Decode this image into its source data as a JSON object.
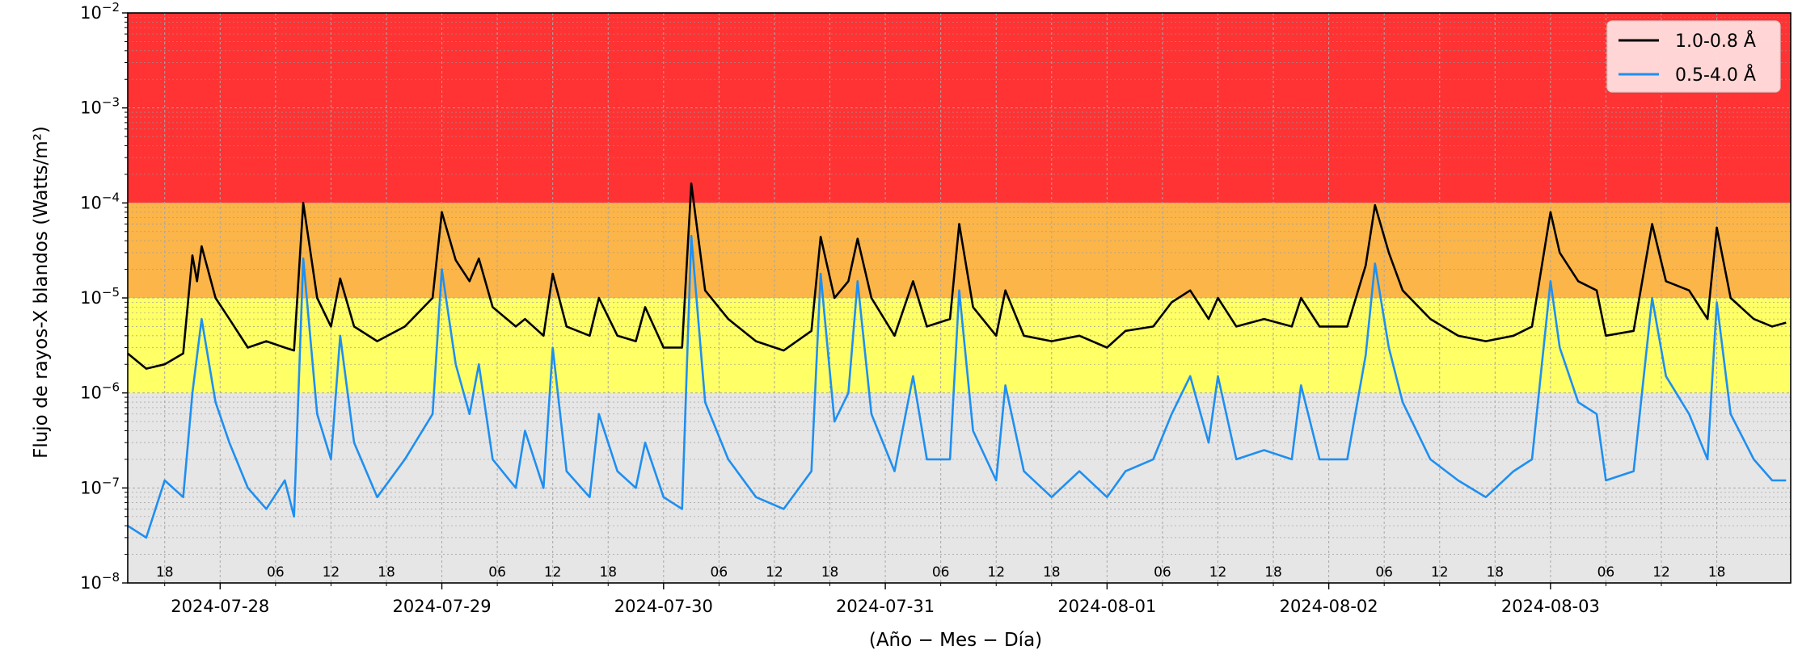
{
  "chart_data": {
    "type": "line",
    "xlabel": "(Año − Mes − Día)",
    "ylabel": "Flujo de rayos-X blandos (Watts/m²)",
    "yscale": "log",
    "ylim": [
      1e-08,
      0.01
    ],
    "y_ticks": [
      {
        "value": 1e-08,
        "base": "10",
        "exp": "−8"
      },
      {
        "value": 1e-07,
        "base": "10",
        "exp": "−7"
      },
      {
        "value": 1e-06,
        "base": "10",
        "exp": "−6"
      },
      {
        "value": 1e-05,
        "base": "10",
        "exp": "−5"
      },
      {
        "value": 0.0001,
        "base": "10",
        "exp": "−4"
      },
      {
        "value": 0.001,
        "base": "10",
        "exp": "−3"
      },
      {
        "value": 0.01,
        "base": "10",
        "exp": "−2"
      }
    ],
    "xlim": [
      "2024-07-27 14:00",
      "2024-08-04 02:00"
    ],
    "x_major_ticks": [
      "2024-07-28",
      "2024-07-29",
      "2024-07-30",
      "2024-07-31",
      "2024-08-01",
      "2024-08-02",
      "2024-08-03"
    ],
    "x_minor_ticks": [
      {
        "t": "2024-07-27 18:00",
        "label": "18"
      },
      {
        "t": "2024-07-28 06:00",
        "label": "06"
      },
      {
        "t": "2024-07-28 12:00",
        "label": "12"
      },
      {
        "t": "2024-07-28 18:00",
        "label": "18"
      },
      {
        "t": "2024-07-29 06:00",
        "label": "06"
      },
      {
        "t": "2024-07-29 12:00",
        "label": "12"
      },
      {
        "t": "2024-07-29 18:00",
        "label": "18"
      },
      {
        "t": "2024-07-30 06:00",
        "label": "06"
      },
      {
        "t": "2024-07-30 12:00",
        "label": "12"
      },
      {
        "t": "2024-07-30 18:00",
        "label": "18"
      },
      {
        "t": "2024-07-31 06:00",
        "label": "06"
      },
      {
        "t": "2024-07-31 12:00",
        "label": "12"
      },
      {
        "t": "2024-07-31 18:00",
        "label": "18"
      },
      {
        "t": "2024-08-01 06:00",
        "label": "06"
      },
      {
        "t": "2024-08-01 12:00",
        "label": "12"
      },
      {
        "t": "2024-08-01 18:00",
        "label": "18"
      },
      {
        "t": "2024-08-02 06:00",
        "label": "06"
      },
      {
        "t": "2024-08-02 12:00",
        "label": "12"
      },
      {
        "t": "2024-08-02 18:00",
        "label": "18"
      },
      {
        "t": "2024-08-03 06:00",
        "label": "06"
      },
      {
        "t": "2024-08-03 12:00",
        "label": "12"
      },
      {
        "t": "2024-08-03 18:00",
        "label": "18"
      }
    ],
    "grid": true,
    "legend_position": "top-right",
    "bands": [
      {
        "from": 0.0001,
        "to": 0.01,
        "color": "#ff3333"
      },
      {
        "from": 1e-05,
        "to": 0.0001,
        "color": "#fbb549"
      },
      {
        "from": 1e-06,
        "to": 1e-05,
        "color": "#ffff66"
      },
      {
        "from": 1e-08,
        "to": 1e-06,
        "color": "#e6e6e6"
      }
    ],
    "series": [
      {
        "name": "1.0-0.8 Å",
        "color": "#000000",
        "points": [
          [
            "2024-07-27 14:00",
            2.6e-06
          ],
          [
            "2024-07-27 16:00",
            1.8e-06
          ],
          [
            "2024-07-27 18:00",
            2e-06
          ],
          [
            "2024-07-27 20:00",
            2.6e-06
          ],
          [
            "2024-07-27 21:00",
            2.8e-05
          ],
          [
            "2024-07-27 21:30",
            1.5e-05
          ],
          [
            "2024-07-27 22:00",
            3.5e-05
          ],
          [
            "2024-07-27 23:30",
            1e-05
          ],
          [
            "2024-07-28 01:00",
            6e-06
          ],
          [
            "2024-07-28 03:00",
            3e-06
          ],
          [
            "2024-07-28 05:00",
            3.5e-06
          ],
          [
            "2024-07-28 07:00",
            3e-06
          ],
          [
            "2024-07-28 08:00",
            2.8e-06
          ],
          [
            "2024-07-28 09:00",
            0.0001
          ],
          [
            "2024-07-28 10:30",
            1e-05
          ],
          [
            "2024-07-28 12:00",
            5e-06
          ],
          [
            "2024-07-28 13:00",
            1.6e-05
          ],
          [
            "2024-07-28 14:30",
            5e-06
          ],
          [
            "2024-07-28 17:00",
            3.5e-06
          ],
          [
            "2024-07-28 20:00",
            5e-06
          ],
          [
            "2024-07-28 23:00",
            1e-05
          ],
          [
            "2024-07-29 00:00",
            8e-05
          ],
          [
            "2024-07-29 01:30",
            2.5e-05
          ],
          [
            "2024-07-29 03:00",
            1.5e-05
          ],
          [
            "2024-07-29 04:00",
            2.6e-05
          ],
          [
            "2024-07-29 05:30",
            8e-06
          ],
          [
            "2024-07-29 08:00",
            5e-06
          ],
          [
            "2024-07-29 09:00",
            6e-06
          ],
          [
            "2024-07-29 11:00",
            4e-06
          ],
          [
            "2024-07-29 12:00",
            1.8e-05
          ],
          [
            "2024-07-29 13:30",
            5e-06
          ],
          [
            "2024-07-29 16:00",
            4e-06
          ],
          [
            "2024-07-29 17:00",
            1e-05
          ],
          [
            "2024-07-29 19:00",
            4e-06
          ],
          [
            "2024-07-29 21:00",
            3.5e-06
          ],
          [
            "2024-07-29 22:00",
            8e-06
          ],
          [
            "2024-07-30 00:00",
            3e-06
          ],
          [
            "2024-07-30 02:00",
            3e-06
          ],
          [
            "2024-07-30 03:00",
            0.00016
          ],
          [
            "2024-07-30 04:30",
            1.2e-05
          ],
          [
            "2024-07-30 07:00",
            6e-06
          ],
          [
            "2024-07-30 10:00",
            3.5e-06
          ],
          [
            "2024-07-30 13:00",
            2.8e-06
          ],
          [
            "2024-07-30 16:00",
            4.5e-06
          ],
          [
            "2024-07-30 17:00",
            4.4e-05
          ],
          [
            "2024-07-30 18:30",
            1e-05
          ],
          [
            "2024-07-30 20:00",
            1.5e-05
          ],
          [
            "2024-07-30 21:00",
            4.2e-05
          ],
          [
            "2024-07-30 22:30",
            1e-05
          ],
          [
            "2024-07-31 01:00",
            4e-06
          ],
          [
            "2024-07-31 03:00",
            1.5e-05
          ],
          [
            "2024-07-31 04:30",
            5e-06
          ],
          [
            "2024-07-31 07:00",
            6e-06
          ],
          [
            "2024-07-31 08:00",
            6e-05
          ],
          [
            "2024-07-31 09:30",
            8e-06
          ],
          [
            "2024-07-31 12:00",
            4e-06
          ],
          [
            "2024-07-31 13:00",
            1.2e-05
          ],
          [
            "2024-07-31 15:00",
            4e-06
          ],
          [
            "2024-07-31 18:00",
            3.5e-06
          ],
          [
            "2024-07-31 21:00",
            4e-06
          ],
          [
            "2024-08-01 00:00",
            3e-06
          ],
          [
            "2024-08-01 02:00",
            4.5e-06
          ],
          [
            "2024-08-01 05:00",
            5e-06
          ],
          [
            "2024-08-01 07:00",
            9e-06
          ],
          [
            "2024-08-01 09:00",
            1.2e-05
          ],
          [
            "2024-08-01 11:00",
            6e-06
          ],
          [
            "2024-08-01 12:00",
            1e-05
          ],
          [
            "2024-08-01 14:00",
            5e-06
          ],
          [
            "2024-08-01 17:00",
            6e-06
          ],
          [
            "2024-08-01 20:00",
            5e-06
          ],
          [
            "2024-08-01 21:00",
            1e-05
          ],
          [
            "2024-08-01 23:00",
            5e-06
          ],
          [
            "2024-08-02 02:00",
            5e-06
          ],
          [
            "2024-08-02 04:00",
            2.2e-05
          ],
          [
            "2024-08-02 05:00",
            9.5e-05
          ],
          [
            "2024-08-02 06:30",
            3e-05
          ],
          [
            "2024-08-02 08:00",
            1.2e-05
          ],
          [
            "2024-08-02 11:00",
            6e-06
          ],
          [
            "2024-08-02 14:00",
            4e-06
          ],
          [
            "2024-08-02 17:00",
            3.5e-06
          ],
          [
            "2024-08-02 20:00",
            4e-06
          ],
          [
            "2024-08-02 22:00",
            5e-06
          ],
          [
            "2024-08-03 00:00",
            8e-05
          ],
          [
            "2024-08-03 01:00",
            3e-05
          ],
          [
            "2024-08-03 03:00",
            1.5e-05
          ],
          [
            "2024-08-03 05:00",
            1.2e-05
          ],
          [
            "2024-08-03 06:00",
            4e-06
          ],
          [
            "2024-08-03 09:00",
            4.5e-06
          ],
          [
            "2024-08-03 11:00",
            6e-05
          ],
          [
            "2024-08-03 12:30",
            1.5e-05
          ],
          [
            "2024-08-03 15:00",
            1.2e-05
          ],
          [
            "2024-08-03 17:00",
            6e-06
          ],
          [
            "2024-08-03 18:00",
            5.5e-05
          ],
          [
            "2024-08-03 19:30",
            1e-05
          ],
          [
            "2024-08-03 22:00",
            6e-06
          ],
          [
            "2024-08-04 00:00",
            5e-06
          ],
          [
            "2024-08-04 01:30",
            5.5e-06
          ]
        ]
      },
      {
        "name": "0.5-4.0 Å",
        "color": "#1f8ff0",
        "points": [
          [
            "2024-07-27 14:00",
            4e-08
          ],
          [
            "2024-07-27 16:00",
            3e-08
          ],
          [
            "2024-07-27 18:00",
            1.2e-07
          ],
          [
            "2024-07-27 20:00",
            8e-08
          ],
          [
            "2024-07-27 21:00",
            1e-06
          ],
          [
            "2024-07-27 22:00",
            6e-06
          ],
          [
            "2024-07-27 23:30",
            8e-07
          ],
          [
            "2024-07-28 01:00",
            3e-07
          ],
          [
            "2024-07-28 03:00",
            1e-07
          ],
          [
            "2024-07-28 05:00",
            6e-08
          ],
          [
            "2024-07-28 07:00",
            1.2e-07
          ],
          [
            "2024-07-28 08:00",
            5e-08
          ],
          [
            "2024-07-28 09:00",
            2.6e-05
          ],
          [
            "2024-07-28 10:30",
            6e-07
          ],
          [
            "2024-07-28 12:00",
            2e-07
          ],
          [
            "2024-07-28 13:00",
            4e-06
          ],
          [
            "2024-07-28 14:30",
            3e-07
          ],
          [
            "2024-07-28 17:00",
            8e-08
          ],
          [
            "2024-07-28 20:00",
            2e-07
          ],
          [
            "2024-07-28 23:00",
            6e-07
          ],
          [
            "2024-07-29 00:00",
            2e-05
          ],
          [
            "2024-07-29 01:30",
            2e-06
          ],
          [
            "2024-07-29 03:00",
            6e-07
          ],
          [
            "2024-07-29 04:00",
            2e-06
          ],
          [
            "2024-07-29 05:30",
            2e-07
          ],
          [
            "2024-07-29 08:00",
            1e-07
          ],
          [
            "2024-07-29 09:00",
            4e-07
          ],
          [
            "2024-07-29 11:00",
            1e-07
          ],
          [
            "2024-07-29 12:00",
            3e-06
          ],
          [
            "2024-07-29 13:30",
            1.5e-07
          ],
          [
            "2024-07-29 16:00",
            8e-08
          ],
          [
            "2024-07-29 17:00",
            6e-07
          ],
          [
            "2024-07-29 19:00",
            1.5e-07
          ],
          [
            "2024-07-29 21:00",
            1e-07
          ],
          [
            "2024-07-29 22:00",
            3e-07
          ],
          [
            "2024-07-30 00:00",
            8e-08
          ],
          [
            "2024-07-30 02:00",
            6e-08
          ],
          [
            "2024-07-30 03:00",
            4.5e-05
          ],
          [
            "2024-07-30 04:30",
            8e-07
          ],
          [
            "2024-07-30 07:00",
            2e-07
          ],
          [
            "2024-07-30 10:00",
            8e-08
          ],
          [
            "2024-07-30 13:00",
            6e-08
          ],
          [
            "2024-07-30 16:00",
            1.5e-07
          ],
          [
            "2024-07-30 17:00",
            1.8e-05
          ],
          [
            "2024-07-30 18:30",
            5e-07
          ],
          [
            "2024-07-30 20:00",
            1e-06
          ],
          [
            "2024-07-30 21:00",
            1.5e-05
          ],
          [
            "2024-07-30 22:30",
            6e-07
          ],
          [
            "2024-07-31 01:00",
            1.5e-07
          ],
          [
            "2024-07-31 03:00",
            1.5e-06
          ],
          [
            "2024-07-31 04:30",
            2e-07
          ],
          [
            "2024-07-31 07:00",
            2e-07
          ],
          [
            "2024-07-31 08:00",
            1.2e-05
          ],
          [
            "2024-07-31 09:30",
            4e-07
          ],
          [
            "2024-07-31 12:00",
            1.2e-07
          ],
          [
            "2024-07-31 13:00",
            1.2e-06
          ],
          [
            "2024-07-31 15:00",
            1.5e-07
          ],
          [
            "2024-07-31 18:00",
            8e-08
          ],
          [
            "2024-07-31 21:00",
            1.5e-07
          ],
          [
            "2024-08-01 00:00",
            8e-08
          ],
          [
            "2024-08-01 02:00",
            1.5e-07
          ],
          [
            "2024-08-01 05:00",
            2e-07
          ],
          [
            "2024-08-01 07:00",
            6e-07
          ],
          [
            "2024-08-01 09:00",
            1.5e-06
          ],
          [
            "2024-08-01 11:00",
            3e-07
          ],
          [
            "2024-08-01 12:00",
            1.5e-06
          ],
          [
            "2024-08-01 14:00",
            2e-07
          ],
          [
            "2024-08-01 17:00",
            2.5e-07
          ],
          [
            "2024-08-01 20:00",
            2e-07
          ],
          [
            "2024-08-01 21:00",
            1.2e-06
          ],
          [
            "2024-08-01 23:00",
            2e-07
          ],
          [
            "2024-08-02 02:00",
            2e-07
          ],
          [
            "2024-08-02 04:00",
            2.5e-06
          ],
          [
            "2024-08-02 05:00",
            2.3e-05
          ],
          [
            "2024-08-02 06:30",
            3e-06
          ],
          [
            "2024-08-02 08:00",
            8e-07
          ],
          [
            "2024-08-02 11:00",
            2e-07
          ],
          [
            "2024-08-02 14:00",
            1.2e-07
          ],
          [
            "2024-08-02 17:00",
            8e-08
          ],
          [
            "2024-08-02 20:00",
            1.5e-07
          ],
          [
            "2024-08-02 22:00",
            2e-07
          ],
          [
            "2024-08-03 00:00",
            1.5e-05
          ],
          [
            "2024-08-03 01:00",
            3e-06
          ],
          [
            "2024-08-03 03:00",
            8e-07
          ],
          [
            "2024-08-03 05:00",
            6e-07
          ],
          [
            "2024-08-03 06:00",
            1.2e-07
          ],
          [
            "2024-08-03 09:00",
            1.5e-07
          ],
          [
            "2024-08-03 11:00",
            1e-05
          ],
          [
            "2024-08-03 12:30",
            1.5e-06
          ],
          [
            "2024-08-03 15:00",
            6e-07
          ],
          [
            "2024-08-03 17:00",
            2e-07
          ],
          [
            "2024-08-03 18:00",
            9e-06
          ],
          [
            "2024-08-03 19:30",
            6e-07
          ],
          [
            "2024-08-03 22:00",
            2e-07
          ],
          [
            "2024-08-04 00:00",
            1.2e-07
          ],
          [
            "2024-08-04 01:30",
            1.2e-07
          ]
        ]
      }
    ]
  }
}
